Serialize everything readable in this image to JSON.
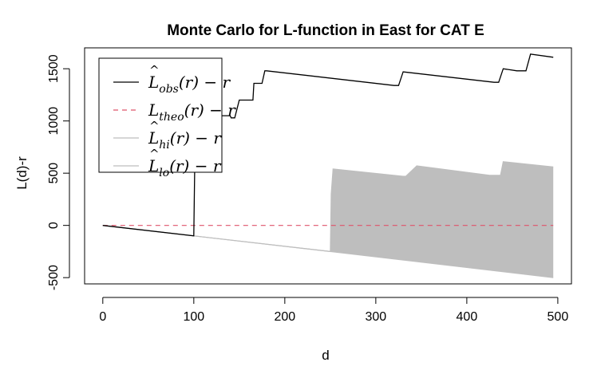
{
  "chart_data": {
    "type": "line",
    "title": "Monte Carlo for L-function in East for CAT E",
    "xlabel": "d",
    "ylabel": "L(d)-r",
    "xlim": [
      -20,
      515
    ],
    "ylim": [
      -560,
      1700
    ],
    "x_ticks": [
      0,
      100,
      200,
      300,
      400,
      500
    ],
    "y_ticks": [
      -500,
      0,
      500,
      1000,
      1500
    ],
    "legend_position": "top-left",
    "legend": [
      {
        "base": "L",
        "hat": "^",
        "sub": "obs",
        "rest": "(r) − r",
        "color": "#000000",
        "dash": "none"
      },
      {
        "base": "L",
        "hat": "",
        "sub": "theo",
        "rest": "(r) − r",
        "color": "#df536b",
        "dash": "6,5"
      },
      {
        "base": "L",
        "hat": "^",
        "sub": "hi",
        "rest": "(r) − r",
        "color": "#bebebe",
        "dash": "none"
      },
      {
        "base": "L",
        "hat": "^",
        "sub": "lo",
        "rest": "(r) − r",
        "color": "#bebebe",
        "dash": "none"
      }
    ],
    "series": [
      {
        "name": "obs",
        "color": "#000000",
        "x": [
          0,
          100,
          101,
          102,
          103,
          120,
          121,
          140,
          141,
          145,
          150,
          151,
          165,
          166,
          175,
          178,
          180,
          320,
          325,
          330,
          430,
          435,
          440,
          455,
          460,
          465,
          470,
          495
        ],
        "y": [
          0,
          -100,
          580,
          580,
          1050,
          1050,
          1050,
          1050,
          1030,
          1030,
          1200,
          1200,
          1200,
          1360,
          1360,
          1480,
          1480,
          1340,
          1340,
          1470,
          1370,
          1370,
          1500,
          1480,
          1480,
          1480,
          1640,
          1610
        ]
      },
      {
        "name": "theo",
        "color": "#df536b",
        "x": [
          0,
          495
        ],
        "y": [
          0,
          0
        ]
      },
      {
        "name": "hi",
        "color": "#bebebe",
        "x": [
          0,
          250,
          251,
          253,
          330,
          333,
          345,
          425,
          427,
          430,
          433,
          437,
          440,
          495
        ],
        "y": [
          0,
          -250,
          300,
          540,
          470,
          470,
          570,
          480,
          480,
          480,
          480,
          480,
          610,
          560
        ]
      },
      {
        "name": "lo",
        "color": "#bebebe",
        "x": [
          0,
          250,
          495
        ],
        "y": [
          0,
          -250,
          -500
        ]
      }
    ]
  }
}
